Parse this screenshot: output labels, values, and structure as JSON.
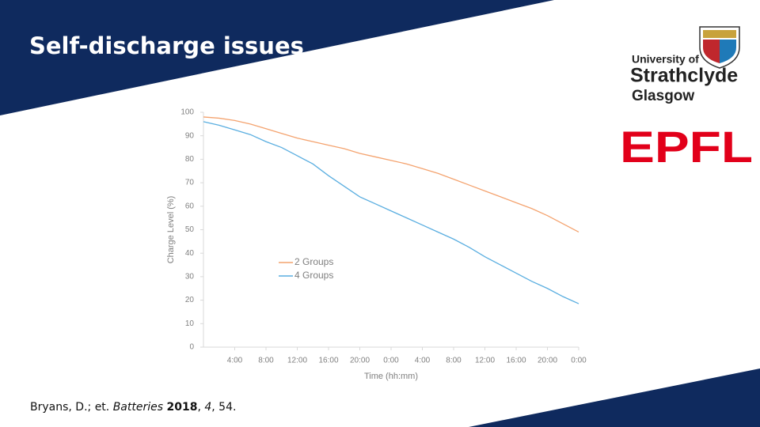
{
  "slide_title": "Self-discharge issues",
  "logos": {
    "strathclyde": [
      "University of",
      "Strathclyde",
      "Glasgow"
    ],
    "epfl": "EPFL"
  },
  "citation": {
    "authors": "Bryans, D.; et.",
    "journal": "Batteries",
    "year": "2018",
    "volume": "4",
    "page": ", 54."
  },
  "chart_data": {
    "type": "line",
    "ylabel": "Charge Level (%)",
    "xlabel": "Time (hh:mm)",
    "x": [
      0,
      2,
      4,
      6,
      8,
      10,
      12,
      14,
      16,
      18,
      20,
      22,
      24,
      26,
      28,
      30,
      32,
      34,
      36,
      38,
      40,
      42,
      44,
      46,
      48
    ],
    "series": [
      {
        "name": "2 Groups",
        "color": "#f4a36f",
        "values": [
          98,
          97.5,
          96.5,
          95,
          93,
          91,
          89,
          87.5,
          86,
          84.5,
          82.5,
          81,
          79.5,
          78,
          76,
          74,
          71.5,
          69,
          66.5,
          64,
          61.5,
          59,
          56,
          52.5,
          49
        ]
      },
      {
        "name": "4 Groups",
        "color": "#5aaee0",
        "values": [
          96,
          94.5,
          92.5,
          90.5,
          87.5,
          85,
          81.5,
          78,
          73,
          68.5,
          64,
          61,
          58,
          55,
          52,
          49,
          46,
          42.5,
          38.5,
          35,
          31.5,
          28,
          25,
          21.5,
          18.5
        ]
      }
    ],
    "xlim": [
      0,
      48
    ],
    "xticks": [
      {
        "value": 4,
        "label": "4:00"
      },
      {
        "value": 8,
        "label": "8:00"
      },
      {
        "value": 12,
        "label": "12:00"
      },
      {
        "value": 16,
        "label": "16:00"
      },
      {
        "value": 20,
        "label": "20:00"
      },
      {
        "value": 24,
        "label": "0:00"
      },
      {
        "value": 28,
        "label": "4:00"
      },
      {
        "value": 32,
        "label": "8:00"
      },
      {
        "value": 36,
        "label": "12:00"
      },
      {
        "value": 40,
        "label": "16:00"
      },
      {
        "value": 44,
        "label": "20:00"
      },
      {
        "value": 48,
        "label": "0:00"
      }
    ],
    "ylim": [
      0,
      100
    ],
    "yticks": [
      0,
      10,
      20,
      30,
      40,
      50,
      60,
      70,
      80,
      90,
      100
    ],
    "legend": "left"
  }
}
